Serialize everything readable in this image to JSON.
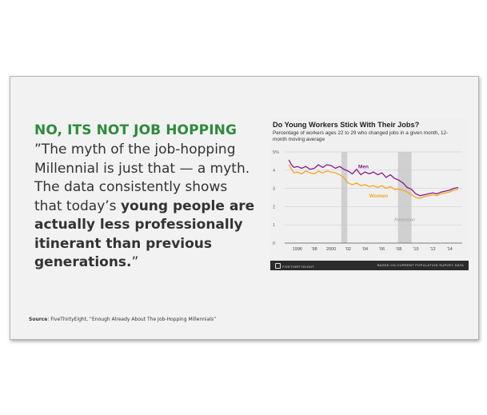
{
  "slide": {
    "heading": "NO, ITS NOT JOB HOPPING",
    "quote_part1": "”The myth of the job-hopping Millennial is just that — a myth. The data consistently shows that today’s ",
    "quote_bold": "young people are actually less professionally itinerant than previous generations.",
    "quote_end": "”",
    "source_label": "Source",
    "source_text": ": FiveThirtyEight, “Enough Already About The Job-Hopping Millennials”"
  },
  "chart_data": {
    "type": "line",
    "title": "Do Young Workers Stick With Their Jobs?",
    "subtitle": "Percentage of workers ages 22 to 29 who changed jobs in a given month, 12-month moving average",
    "y_ticks": [
      "5%",
      "4",
      "3",
      "2",
      "1",
      "0"
    ],
    "x_ticks": [
      "1996",
      "’98",
      "2000",
      "’02",
      "’04",
      "’06",
      "’08",
      "’10",
      "’12",
      "’14"
    ],
    "xlim": [
      1994.5,
      2015.5
    ],
    "ylim": [
      0,
      5
    ],
    "recession_label": "Recession",
    "recessions": [
      [
        2001.2,
        2001.9
      ],
      [
        2007.9,
        2009.5
      ]
    ],
    "colors": {
      "men": "#8b1a8b",
      "women": "#f5a623",
      "recession": "#d0d0d0"
    },
    "series": [
      {
        "name": "Men",
        "color": "#8b1a8b",
        "x": [
          1995.0,
          1995.3,
          1995.6,
          1996.0,
          1996.5,
          1997.0,
          1997.5,
          1998.0,
          1998.5,
          1999.0,
          1999.5,
          2000.0,
          2000.5,
          2001.0,
          2001.5,
          2002.0,
          2002.5,
          2003.0,
          2003.5,
          2004.0,
          2004.5,
          2005.0,
          2005.5,
          2006.0,
          2006.5,
          2007.0,
          2007.5,
          2008.0,
          2008.5,
          2009.0,
          2009.5,
          2010.0,
          2010.5,
          2011.0,
          2011.5,
          2012.0,
          2012.5,
          2013.0,
          2013.5,
          2014.0,
          2014.5,
          2015.0
        ],
        "values": [
          4.55,
          4.3,
          4.15,
          4.2,
          4.1,
          4.2,
          4.05,
          4.1,
          4.3,
          4.15,
          4.3,
          4.25,
          4.1,
          4.2,
          4.05,
          3.95,
          3.8,
          4.05,
          3.75,
          3.9,
          3.8,
          3.9,
          3.75,
          3.85,
          3.6,
          3.75,
          3.55,
          3.45,
          3.3,
          3.05,
          2.95,
          2.7,
          2.6,
          2.65,
          2.7,
          2.75,
          2.7,
          2.8,
          2.85,
          2.9,
          3.0,
          3.05
        ]
      },
      {
        "name": "Women",
        "color": "#f5a623",
        "x": [
          1995.0,
          1995.3,
          1995.6,
          1996.0,
          1996.5,
          1997.0,
          1997.5,
          1998.0,
          1998.5,
          1999.0,
          1999.5,
          2000.0,
          2000.5,
          2001.0,
          2001.5,
          2002.0,
          2002.5,
          2003.0,
          2003.5,
          2004.0,
          2004.5,
          2005.0,
          2005.5,
          2006.0,
          2006.5,
          2007.0,
          2007.5,
          2008.0,
          2008.5,
          2009.0,
          2009.5,
          2010.0,
          2010.5,
          2011.0,
          2011.5,
          2012.0,
          2012.5,
          2013.0,
          2013.5,
          2014.0,
          2014.5,
          2015.0
        ],
        "values": [
          4.3,
          4.05,
          3.85,
          3.9,
          3.8,
          3.95,
          3.85,
          3.8,
          3.95,
          3.85,
          3.95,
          3.9,
          3.85,
          3.75,
          3.6,
          3.3,
          3.2,
          3.3,
          3.15,
          3.2,
          3.1,
          3.15,
          3.05,
          3.15,
          3.0,
          3.1,
          2.95,
          2.95,
          2.9,
          2.8,
          2.65,
          2.5,
          2.45,
          2.55,
          2.6,
          2.65,
          2.6,
          2.7,
          2.75,
          2.8,
          2.9,
          2.95
        ]
      }
    ],
    "footer_left": "FIVETHIRTYEIGHT",
    "footer_right": "BASED ON CURRENT POPULATION SURVEY DATA"
  }
}
